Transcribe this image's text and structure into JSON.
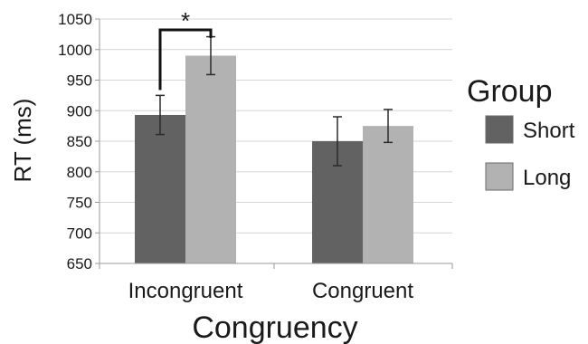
{
  "chart_data": {
    "type": "bar",
    "xlabel": "Congruency",
    "ylabel": "RT (ms)",
    "ylim": [
      650,
      1050
    ],
    "yticks": [
      650,
      700,
      750,
      800,
      850,
      900,
      950,
      1000,
      1050
    ],
    "grid": true,
    "categories": [
      "Incongruent",
      "Congruent"
    ],
    "series": [
      {
        "name": "Short",
        "values": [
          893,
          850
        ],
        "error": [
          32,
          40
        ],
        "color": "#626262"
      },
      {
        "name": "Long",
        "values": [
          990,
          875
        ],
        "error": [
          31,
          27
        ],
        "color": "#b2b2b2"
      }
    ],
    "legend": {
      "title": "Group",
      "position": "right"
    },
    "annotations": [
      {
        "text": "*",
        "category": "Incongruent",
        "between": [
          "Short",
          "Long"
        ]
      }
    ]
  }
}
